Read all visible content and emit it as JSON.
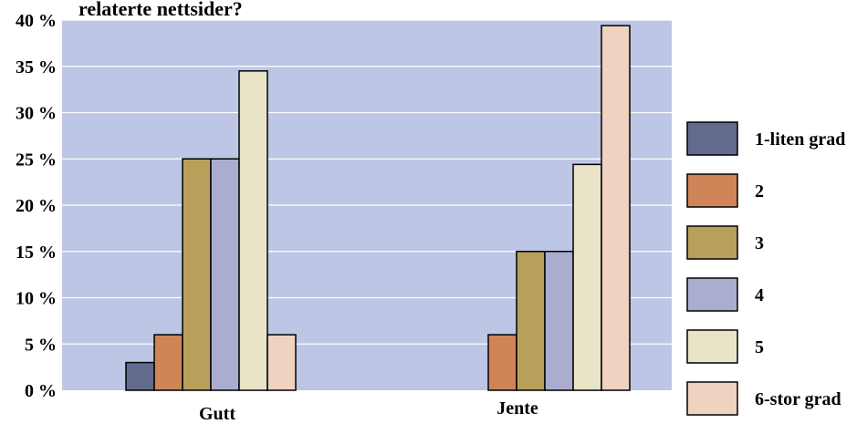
{
  "chart_data": {
    "type": "bar",
    "title": "relaterte nettsider?",
    "categories": [
      "Gutt",
      "Jente"
    ],
    "ylim": [
      0,
      40
    ],
    "yticks": [
      "0 %",
      "5 %",
      "10 %",
      "15 %",
      "20 %",
      "25 %",
      "30 %",
      "35 %",
      "40 %"
    ],
    "grid": true,
    "legend_position": "right",
    "plot_background": "#bec6e6",
    "series": [
      {
        "name": "1-liten grad",
        "color": "#646a8e",
        "values": [
          3,
          0
        ]
      },
      {
        "name": "2",
        "color": "#cf8558",
        "values": [
          6,
          6
        ]
      },
      {
        "name": "3",
        "color": "#b8a05a",
        "values": [
          25,
          15
        ]
      },
      {
        "name": "4",
        "color": "#aaadd0",
        "values": [
          25,
          15
        ]
      },
      {
        "name": "5",
        "color": "#e9e4c7",
        "values": [
          34.5,
          24.4
        ]
      },
      {
        "name": "6-stor grad",
        "color": "#efd2bf",
        "values": [
          6,
          39.4
        ]
      }
    ]
  }
}
